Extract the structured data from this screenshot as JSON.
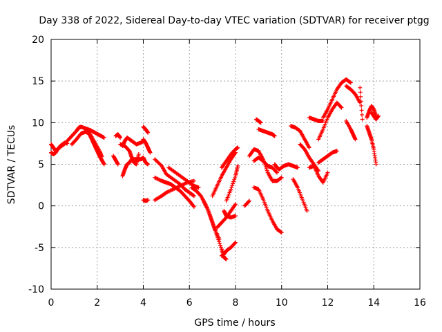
{
  "chart_data": {
    "type": "scatter",
    "title": "Day 338 of 2022, Sidereal Day-to-day VTEC variation (SDTVAR) for receiver ptgg",
    "xlabel": "GPS time / hours",
    "ylabel": "SDTVAR / TECUs",
    "xlim": [
      0,
      16
    ],
    "ylim": [
      -10,
      20
    ],
    "xticks": [
      0,
      2,
      4,
      6,
      8,
      10,
      12,
      14,
      16
    ],
    "yticks": [
      -10,
      -5,
      0,
      5,
      10,
      15,
      20
    ],
    "grid": true,
    "marker": "+",
    "color": "#ff0000",
    "series": [
      {
        "x": [
          0.0,
          0.1,
          0.2,
          0.3,
          0.4,
          0.5,
          0.6,
          0.7
        ],
        "values": [
          7.4,
          7.0,
          6.6,
          6.8,
          7.2,
          7.4,
          7.6,
          7.5
        ]
      },
      {
        "x": [
          0.0,
          0.1,
          0.2,
          0.3,
          0.4,
          0.5,
          0.6
        ],
        "values": [
          6.4,
          6.2,
          6.4,
          6.9,
          7.1,
          7.3,
          7.5
        ]
      },
      {
        "x": [
          0.7,
          0.9,
          1.1,
          1.2,
          1.3,
          1.5,
          1.7,
          1.9,
          2.1,
          2.3
        ],
        "values": [
          7.8,
          8.4,
          9.0,
          9.4,
          9.5,
          9.3,
          9.1,
          8.8,
          8.5,
          8.2
        ]
      },
      {
        "x": [
          0.9,
          1.1,
          1.3,
          1.5,
          1.7,
          1.9,
          2.1,
          2.2
        ],
        "values": [
          7.4,
          8.0,
          8.7,
          8.9,
          8.6,
          7.6,
          6.6,
          5.9
        ]
      },
      {
        "x": [
          1.5,
          1.6,
          1.7,
          1.8,
          1.9,
          2.0,
          2.1,
          2.2,
          2.3
        ],
        "values": [
          9.2,
          9.0,
          8.4,
          7.8,
          7.2,
          6.6,
          6.0,
          5.5,
          5.0
        ]
      },
      {
        "x": [
          2.8,
          2.9,
          3.0
        ],
        "values": [
          8.4,
          8.6,
          8.2
        ]
      },
      {
        "x": [
          2.7,
          2.8,
          2.9
        ],
        "values": [
          6.0,
          5.5,
          5.0
        ]
      },
      {
        "x": [
          3.1,
          3.2,
          3.3,
          3.5,
          3.7,
          3.9,
          4.0
        ],
        "values": [
          7.2,
          7.8,
          8.2,
          7.8,
          7.4,
          7.6,
          7.8
        ]
      },
      {
        "x": [
          3.0,
          3.2,
          3.4,
          3.5,
          3.6,
          3.7,
          3.8
        ],
        "values": [
          7.4,
          7.2,
          6.6,
          5.8,
          5.2,
          5.0,
          6.2
        ]
      },
      {
        "x": [
          3.1,
          3.2,
          3.3,
          3.4,
          3.5,
          3.7,
          3.9,
          4.0,
          4.1,
          4.2
        ],
        "values": [
          3.6,
          4.4,
          5.0,
          5.2,
          5.6,
          5.6,
          5.6,
          5.8,
          5.2,
          5.0
        ]
      },
      {
        "x": [
          4.0,
          4.1,
          4.2,
          4.3
        ],
        "values": [
          8.0,
          7.6,
          7.0,
          6.4
        ]
      },
      {
        "x": [
          4.0,
          4.1,
          4.2
        ],
        "values": [
          9.5,
          9.2,
          8.8
        ]
      },
      {
        "x": [
          4.0,
          4.1,
          4.2
        ],
        "values": [
          0.7,
          0.6,
          0.7
        ]
      },
      {
        "x": [
          4.5,
          4.8,
          5.0,
          5.3,
          5.6,
          5.8,
          6.0,
          6.2
        ],
        "values": [
          5.6,
          4.8,
          3.8,
          3.2,
          2.6,
          2.0,
          1.6,
          1.2
        ]
      },
      {
        "x": [
          4.5,
          4.8,
          5.0,
          5.2,
          5.4,
          5.6,
          5.8,
          6.0,
          6.2
        ],
        "values": [
          3.4,
          3.0,
          2.8,
          2.6,
          2.2,
          1.8,
          1.2,
          0.6,
          -0.1
        ]
      },
      {
        "x": [
          4.5,
          4.8,
          5.0,
          5.3,
          5.6,
          5.9,
          6.2
        ],
        "values": [
          0.7,
          1.2,
          1.6,
          2.0,
          2.4,
          2.8,
          3.0
        ]
      },
      {
        "x": [
          5.1,
          5.4,
          5.7,
          6.0,
          6.2,
          6.4
        ],
        "values": [
          4.6,
          4.0,
          3.4,
          2.8,
          2.4,
          2.2
        ]
      },
      {
        "x": [
          6.1,
          6.3,
          6.5,
          6.7,
          6.9,
          7.1,
          7.3
        ],
        "values": [
          2.2,
          1.8,
          1.2,
          0.2,
          -1.2,
          -2.8,
          -4.0
        ]
      },
      {
        "x": [
          6.6,
          6.8,
          7.0,
          7.2,
          7.4,
          7.5,
          7.6
        ],
        "values": [
          0.6,
          -0.4,
          -2.0,
          -3.6,
          -5.2,
          -6.2,
          -6.4
        ]
      },
      {
        "x": [
          7.4,
          7.5,
          7.6,
          7.8,
          8.0
        ],
        "values": [
          -6.0,
          -5.8,
          -5.4,
          -5.0,
          -4.4
        ]
      },
      {
        "x": [
          7.2,
          7.4,
          7.6,
          7.8,
          8.0
        ],
        "values": [
          -2.6,
          -2.0,
          -1.4,
          -0.6,
          0.2
        ]
      },
      {
        "x": [
          7.5,
          7.6,
          7.8,
          8.0
        ],
        "values": [
          -0.6,
          -1.2,
          -1.4,
          -1.2
        ]
      },
      {
        "x": [
          7.0,
          7.2,
          7.4,
          7.6,
          7.8,
          8.0
        ],
        "values": [
          1.2,
          2.4,
          3.6,
          4.6,
          5.6,
          6.4
        ]
      },
      {
        "x": [
          7.4,
          7.6,
          7.8,
          8.0,
          8.1
        ],
        "values": [
          4.6,
          5.4,
          6.2,
          6.8,
          7.0
        ]
      },
      {
        "x": [
          7.6,
          7.8,
          8.0,
          8.1
        ],
        "values": [
          0.6,
          2.0,
          3.6,
          4.8
        ]
      },
      {
        "x": [
          8.4,
          8.6
        ],
        "values": [
          0.0,
          0.6
        ]
      },
      {
        "x": [
          8.6,
          8.8,
          9.0,
          9.2,
          9.4,
          9.6,
          9.8,
          10.0
        ],
        "values": [
          6.0,
          6.8,
          6.6,
          5.6,
          4.0,
          3.0,
          3.0,
          3.4
        ]
      },
      {
        "x": [
          8.8,
          9.0,
          9.2,
          9.4,
          9.6,
          9.8
        ],
        "values": [
          5.4,
          5.8,
          5.4,
          4.8,
          4.6,
          4.0
        ]
      },
      {
        "x": [
          8.8,
          9.0,
          9.2,
          9.4,
          9.6,
          9.8,
          10.0
        ],
        "values": [
          2.2,
          2.0,
          0.8,
          -0.6,
          -1.8,
          -2.8,
          -3.2
        ]
      },
      {
        "x": [
          8.9,
          9.0,
          9.1
        ],
        "values": [
          10.4,
          10.2,
          10.0
        ]
      },
      {
        "x": [
          9.0,
          9.2,
          9.4,
          9.6,
          9.7
        ],
        "values": [
          9.2,
          9.0,
          8.8,
          8.6,
          8.4
        ]
      },
      {
        "x": [
          9.7,
          9.8,
          9.9
        ],
        "values": [
          5.0,
          4.6,
          4.4
        ]
      },
      {
        "x": [
          9.9,
          10.1,
          10.3,
          10.5,
          10.7
        ],
        "values": [
          4.4,
          4.8,
          5.0,
          4.8,
          4.6
        ]
      },
      {
        "x": [
          10.5,
          10.7,
          10.9,
          11.1
        ],
        "values": [
          3.2,
          2.2,
          0.8,
          -0.6
        ]
      },
      {
        "x": [
          10.4,
          10.6,
          10.8,
          11.0,
          11.2
        ],
        "values": [
          9.6,
          9.4,
          9.0,
          8.0,
          7.0
        ]
      },
      {
        "x": [
          10.8,
          11.0,
          11.2,
          11.4,
          11.6
        ],
        "values": [
          7.4,
          6.8,
          5.8,
          5.0,
          4.2
        ]
      },
      {
        "x": [
          11.2,
          11.4,
          11.6,
          11.8,
          12.0
        ],
        "values": [
          4.6,
          4.8,
          3.6,
          2.8,
          4.0
        ]
      },
      {
        "x": [
          11.2,
          11.4,
          11.6,
          11.8
        ],
        "values": [
          10.6,
          10.4,
          10.2,
          10.2
        ]
      },
      {
        "x": [
          11.6,
          11.8,
          12.0,
          12.2,
          12.4
        ],
        "values": [
          5.2,
          5.6,
          6.0,
          6.4,
          6.6
        ]
      },
      {
        "x": [
          11.8,
          12.0,
          12.2,
          12.4,
          12.6,
          12.8,
          13.0
        ],
        "values": [
          10.6,
          11.6,
          12.8,
          14.0,
          14.8,
          15.2,
          14.8
        ]
      },
      {
        "x": [
          11.6,
          11.8,
          12.0,
          12.2,
          12.4,
          12.6
        ],
        "values": [
          8.0,
          9.2,
          10.6,
          11.6,
          12.4,
          11.8
        ]
      },
      {
        "x": [
          12.8,
          13.0,
          13.2,
          13.4
        ],
        "values": [
          14.4,
          14.0,
          13.4,
          12.4
        ]
      },
      {
        "x": [
          12.8,
          13.0,
          13.1,
          13.2
        ],
        "values": [
          10.2,
          9.2,
          8.6,
          8.0
        ]
      },
      {
        "x": [
          13.4,
          13.5
        ],
        "values": [
          14.2,
          10.4
        ]
      },
      {
        "x": [
          13.7,
          13.8,
          13.9,
          14.0,
          14.1
        ],
        "values": [
          10.6,
          11.4,
          12.0,
          11.6,
          10.8
        ]
      },
      {
        "x": [
          13.7,
          13.8,
          13.9,
          14.0,
          14.1
        ],
        "values": [
          9.6,
          8.8,
          8.0,
          6.8,
          5.0
        ]
      },
      {
        "x": [
          13.9,
          14.0,
          14.1,
          14.2
        ],
        "values": [
          11.2,
          10.8,
          10.4,
          10.8
        ]
      }
    ]
  }
}
